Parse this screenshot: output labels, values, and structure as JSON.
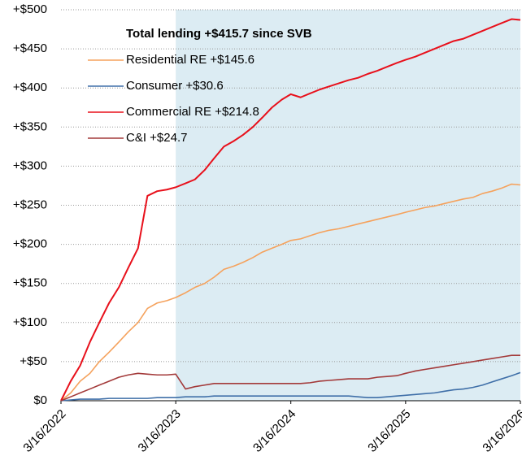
{
  "chart_data": {
    "type": "line",
    "legend_title": "Total lending +$415.7 since SVB",
    "x": [
      "2022-03-16",
      "2022-04-16",
      "2022-05-16",
      "2022-06-16",
      "2022-07-16",
      "2022-08-16",
      "2022-09-16",
      "2022-10-16",
      "2022-11-16",
      "2022-12-16",
      "2023-01-16",
      "2023-02-16",
      "2023-03-16",
      "2023-04-16",
      "2023-05-16",
      "2023-06-16",
      "2023-07-16",
      "2023-08-16",
      "2023-09-16",
      "2023-10-16",
      "2023-11-16",
      "2023-12-16",
      "2024-01-16",
      "2024-02-16",
      "2024-03-16",
      "2024-04-16",
      "2024-05-16",
      "2024-06-16",
      "2024-07-16",
      "2024-08-16",
      "2024-09-16",
      "2024-10-16",
      "2024-11-16",
      "2024-12-16",
      "2025-01-16",
      "2025-02-16",
      "2025-03-16",
      "2025-04-16",
      "2025-05-16",
      "2025-06-16",
      "2025-07-16",
      "2025-08-16",
      "2025-09-16",
      "2025-10-16",
      "2025-11-16",
      "2025-12-16",
      "2026-01-16",
      "2026-02-16",
      "2026-03-16"
    ],
    "series": [
      {
        "name": "Residential RE +$145.6",
        "color": "#f5a25d",
        "values": [
          0,
          10,
          25,
          35,
          50,
          62,
          75,
          88,
          100,
          118,
          125,
          128,
          132,
          138,
          145,
          150,
          158,
          168,
          172,
          177,
          183,
          190,
          195,
          200,
          205,
          207,
          211,
          215,
          218,
          220,
          223,
          226,
          229,
          232,
          235,
          238,
          241,
          244,
          247,
          249,
          252,
          255,
          258,
          260,
          265,
          268,
          272,
          277,
          276
        ]
      },
      {
        "name": "Consumer +$30.6",
        "color": "#3f6fa8",
        "values": [
          0,
          1,
          2,
          2,
          2,
          3,
          3,
          3,
          3,
          3,
          4,
          4,
          4,
          5,
          5,
          5,
          6,
          6,
          6,
          6,
          6,
          6,
          6,
          6,
          6,
          6,
          6,
          6,
          6,
          6,
          6,
          5,
          4,
          4,
          5,
          6,
          7,
          8,
          9,
          10,
          12,
          14,
          15,
          17,
          20,
          24,
          28,
          32,
          36
        ]
      },
      {
        "name": "Commercial RE +$214.8",
        "color": "#e8101b",
        "values": [
          0,
          25,
          45,
          75,
          100,
          125,
          145,
          170,
          195,
          262,
          268,
          270,
          273,
          278,
          283,
          295,
          310,
          325,
          332,
          340,
          350,
          362,
          375,
          385,
          392,
          388,
          393,
          398,
          402,
          406,
          410,
          413,
          418,
          422,
          427,
          432,
          436,
          440,
          445,
          450,
          455,
          460,
          463,
          468,
          473,
          478,
          483,
          488,
          487
        ]
      },
      {
        "name": "C&I +$24.7",
        "color": "#a33a3a",
        "values": [
          0,
          5,
          10,
          15,
          20,
          25,
          30,
          33,
          35,
          34,
          33,
          33,
          34,
          15,
          18,
          20,
          22,
          22,
          22,
          22,
          22,
          22,
          22,
          22,
          22,
          22,
          23,
          25,
          26,
          27,
          28,
          28,
          28,
          30,
          31,
          32,
          35,
          38,
          40,
          42,
          44,
          46,
          48,
          50,
          52,
          54,
          56,
          58,
          58
        ]
      }
    ],
    "xlim": [
      "2022-03-16",
      "2026-03-16"
    ],
    "xticks": [
      {
        "value": "2022-03-16",
        "label": "3/16/2022"
      },
      {
        "value": "2023-03-16",
        "label": "3/16/2023"
      },
      {
        "value": "2024-03-16",
        "label": "3/16/2024"
      },
      {
        "value": "2025-03-16",
        "label": "3/16/2025"
      },
      {
        "value": "2026-03-16",
        "label": "3/16/2026"
      }
    ],
    "ylim": [
      0,
      500
    ],
    "yticks": [
      {
        "value": 0,
        "label": "$0"
      },
      {
        "value": 50,
        "label": "+$50"
      },
      {
        "value": 100,
        "label": "+$100"
      },
      {
        "value": 150,
        "label": "+$150"
      },
      {
        "value": 200,
        "label": "+$200"
      },
      {
        "value": 250,
        "label": "+$250"
      },
      {
        "value": 300,
        "label": "+$300"
      },
      {
        "value": 350,
        "label": "+$350"
      },
      {
        "value": 400,
        "label": "+$400"
      },
      {
        "value": 450,
        "label": "+$450"
      },
      {
        "value": 500,
        "label": "+$500"
      }
    ],
    "grid": true,
    "shaded_region": {
      "from": "2023-03-16",
      "to": "2026-03-16",
      "color": "#dcecf3"
    }
  }
}
